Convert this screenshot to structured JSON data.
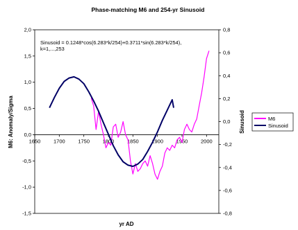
{
  "chart_data": {
    "type": "line",
    "title": "Phase-matching M6 and 254-yr Sinusoid",
    "xlabel": "yr AD",
    "ylabel_left": "M6: Anomaly/Sigma",
    "ylabel_right": "Sinusoid",
    "annotation": "Sinusoid = 0.1248*cos(6.283*k/254)+0.3711*sin(6.283*k/254),\nk=1,...,253",
    "xlim": [
      1650,
      2025
    ],
    "x_ticks": [
      "1650",
      "1700",
      "1750",
      "1800",
      "1850",
      "1900",
      "1950",
      "2000"
    ],
    "ylim_left": [
      -1.5,
      2.0
    ],
    "y_ticks_left": [
      "-1,5",
      "-1,0",
      "-0,5",
      "0,0",
      "0,5",
      "1,0",
      "1,5",
      "2,0"
    ],
    "ylim_right": [
      -0.8,
      0.8
    ],
    "y_ticks_right": [
      "-0,8",
      "-0,6",
      "-0,4",
      "-0,2",
      "0,0",
      "0,2",
      "0,4",
      "0,6",
      "0,8"
    ],
    "grid": false,
    "legend_position": "right",
    "series": [
      {
        "name": "M6",
        "color": "#ff00ff",
        "axis": "left",
        "x": [
          1765,
          1770,
          1775,
          1780,
          1785,
          1790,
          1795,
          1800,
          1805,
          1810,
          1815,
          1820,
          1825,
          1830,
          1835,
          1840,
          1845,
          1850,
          1855,
          1860,
          1865,
          1870,
          1875,
          1880,
          1885,
          1890,
          1895,
          1900,
          1905,
          1910,
          1915,
          1920,
          1925,
          1930,
          1935,
          1940,
          1945,
          1950,
          1955,
          1960,
          1965,
          1970,
          1975,
          1980,
          1985,
          1990,
          1995,
          2000,
          2005
        ],
        "y": [
          0.7,
          0.55,
          0.1,
          0.45,
          0.2,
          0.0,
          -0.25,
          -0.15,
          -0.2,
          0.15,
          0.2,
          -0.05,
          0.05,
          0.25,
          0.0,
          -0.1,
          -0.5,
          -0.75,
          -0.55,
          -0.7,
          -0.65,
          -0.55,
          -0.5,
          -0.6,
          -0.4,
          -0.55,
          -0.75,
          -0.85,
          -0.7,
          -0.6,
          -0.35,
          -0.25,
          -0.3,
          -0.2,
          -0.25,
          -0.1,
          -0.05,
          -0.15,
          0.1,
          0.2,
          0.1,
          0.05,
          0.2,
          0.3,
          0.55,
          0.8,
          1.1,
          1.45,
          1.6
        ]
      },
      {
        "name": "Sinusoid",
        "color": "#000066",
        "axis": "right",
        "x": [
          1680,
          1690,
          1700,
          1710,
          1720,
          1730,
          1740,
          1750,
          1760,
          1770,
          1780,
          1790,
          1800,
          1810,
          1820,
          1830,
          1840,
          1850,
          1860,
          1870,
          1880,
          1890,
          1900,
          1910,
          1920,
          1930,
          1933
        ],
        "y": [
          0.12,
          0.21,
          0.29,
          0.35,
          0.38,
          0.39,
          0.37,
          0.33,
          0.26,
          0.18,
          0.09,
          -0.01,
          -0.11,
          -0.21,
          -0.29,
          -0.35,
          -0.38,
          -0.39,
          -0.37,
          -0.33,
          -0.26,
          -0.18,
          -0.09,
          0.01,
          0.1,
          0.19,
          0.12
        ]
      }
    ]
  }
}
